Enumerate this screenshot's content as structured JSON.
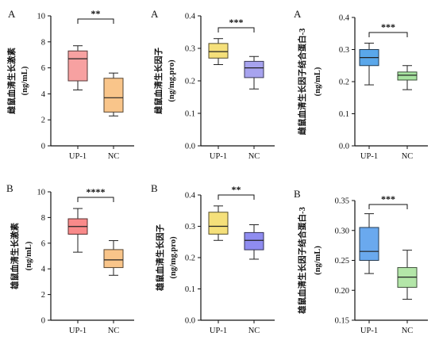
{
  "chart_data": [
    {
      "type": "box",
      "panel_label": "A",
      "ylabel": "雌鼠血清生长激素",
      "yunit": "(ng/mL)",
      "ylim": [
        0,
        10
      ],
      "yticks": [
        0,
        2,
        4,
        6,
        8,
        10
      ],
      "ytick_labels": [
        "0",
        "2",
        "4",
        "6",
        "8",
        "10"
      ],
      "categories": [
        "UP-1",
        "NC"
      ],
      "boxes": [
        {
          "min": 4.3,
          "q1": 5.0,
          "median": 6.7,
          "q3": 7.3,
          "max": 7.7,
          "color": "#f7a1a1"
        },
        {
          "min": 2.3,
          "q1": 2.6,
          "median": 3.7,
          "q3": 5.2,
          "max": 5.6,
          "color": "#f9c58a"
        }
      ],
      "significance": "**"
    },
    {
      "type": "box",
      "panel_label": "A",
      "ylabel": "雌鼠血清生长因子",
      "yunit": "(ng/mg.pro)",
      "ylim": [
        0,
        0.4
      ],
      "yticks": [
        0,
        0.1,
        0.2,
        0.3,
        0.4
      ],
      "ytick_labels": [
        "0.0",
        "0.1",
        "0.2",
        "0.3",
        "0.4"
      ],
      "categories": [
        "UP-1",
        "NC"
      ],
      "boxes": [
        {
          "min": 0.25,
          "q1": 0.27,
          "median": 0.29,
          "q3": 0.315,
          "max": 0.33,
          "color": "#f5e07a"
        },
        {
          "min": 0.175,
          "q1": 0.21,
          "median": 0.24,
          "q3": 0.26,
          "max": 0.275,
          "color": "#a7a3ef"
        }
      ],
      "significance": "***"
    },
    {
      "type": "box",
      "panel_label": "A",
      "ylabel": "雌鼠血清生长因子结合蛋白-3",
      "yunit": "(ng/mL)",
      "ylim": [
        0,
        0.4
      ],
      "yticks": [
        0,
        0.1,
        0.2,
        0.3,
        0.4
      ],
      "ytick_labels": [
        "0.0",
        "0.1",
        "0.2",
        "0.3",
        "0.4"
      ],
      "categories": [
        "UP-1",
        "NC"
      ],
      "boxes": [
        {
          "min": 0.19,
          "q1": 0.25,
          "median": 0.275,
          "q3": 0.3,
          "max": 0.32,
          "color": "#5aa7ea"
        },
        {
          "min": 0.175,
          "q1": 0.205,
          "median": 0.22,
          "q3": 0.23,
          "max": 0.25,
          "color": "#a7e3a0"
        }
      ],
      "significance": "***"
    },
    {
      "type": "box",
      "panel_label": "B",
      "ylabel": "雄鼠血清生长激素",
      "yunit": "(ng/mL)",
      "ylim": [
        0,
        10
      ],
      "yticks": [
        0,
        2,
        4,
        6,
        8,
        10
      ],
      "ytick_labels": [
        "0",
        "2",
        "4",
        "6",
        "8",
        "10"
      ],
      "categories": [
        "UP-1",
        "NC"
      ],
      "boxes": [
        {
          "min": 5.3,
          "q1": 6.7,
          "median": 7.3,
          "q3": 7.9,
          "max": 8.7,
          "color": "#f98a8a"
        },
        {
          "min": 3.5,
          "q1": 4.1,
          "median": 4.7,
          "q3": 5.5,
          "max": 6.2,
          "color": "#f9c58a"
        }
      ],
      "significance": "****"
    },
    {
      "type": "box",
      "panel_label": "B",
      "ylabel": "雄鼠血清生长因子",
      "yunit": "(ng/mg.pro)",
      "ylim": [
        0,
        0.4
      ],
      "yticks": [
        0,
        0.1,
        0.2,
        0.3,
        0.4
      ],
      "ytick_labels": [
        "0.0",
        "0.1",
        "0.2",
        "0.3",
        "0.4"
      ],
      "categories": [
        "UP-1",
        "NC"
      ],
      "boxes": [
        {
          "min": 0.255,
          "q1": 0.275,
          "median": 0.3,
          "q3": 0.345,
          "max": 0.365,
          "color": "#f5e07a"
        },
        {
          "min": 0.195,
          "q1": 0.225,
          "median": 0.255,
          "q3": 0.28,
          "max": 0.305,
          "color": "#8f8cf0"
        }
      ],
      "significance": "**"
    },
    {
      "type": "box",
      "panel_label": "B",
      "ylabel": "雄鼠血清生长因子结合蛋白-3",
      "yunit": "(ng/mL)",
      "ylim": [
        0.15,
        0.35
      ],
      "yticks": [
        0.15,
        0.2,
        0.25,
        0.3,
        0.35
      ],
      "ytick_labels": [
        "0.15",
        "0.20",
        "0.25",
        "0.30",
        "0.35"
      ],
      "categories": [
        "UP-1",
        "NC"
      ],
      "boxes": [
        {
          "min": 0.228,
          "q1": 0.25,
          "median": 0.265,
          "q3": 0.305,
          "max": 0.328,
          "color": "#6aa9ee"
        },
        {
          "min": 0.185,
          "q1": 0.205,
          "median": 0.222,
          "q3": 0.238,
          "max": 0.267,
          "color": "#b3e6a8"
        }
      ],
      "significance": "***"
    }
  ]
}
